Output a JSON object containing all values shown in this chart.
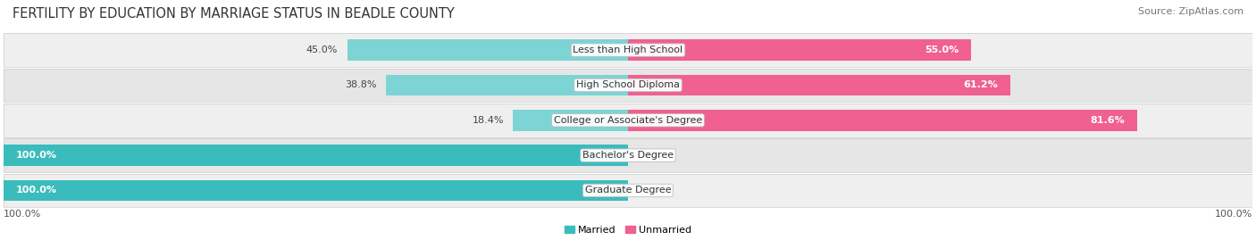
{
  "title": "FERTILITY BY EDUCATION BY MARRIAGE STATUS IN BEADLE COUNTY",
  "source": "Source: ZipAtlas.com",
  "categories": [
    "Less than High School",
    "High School Diploma",
    "College or Associate's Degree",
    "Bachelor's Degree",
    "Graduate Degree"
  ],
  "married": [
    45.0,
    38.8,
    18.4,
    100.0,
    100.0
  ],
  "unmarried": [
    55.0,
    61.2,
    81.6,
    0.0,
    0.0
  ],
  "married_color_dark": "#3BBCBC",
  "married_color_light": "#7DD4D4",
  "unmarried_color_dark": "#F06090",
  "unmarried_color_light": "#F4A8C0",
  "row_bg_colors": [
    "#EFEFEF",
    "#E6E6E6"
  ],
  "row_outline_color": "#CCCCCC",
  "title_fontsize": 10.5,
  "source_fontsize": 8,
  "label_fontsize": 8,
  "bar_height": 0.6,
  "bar_label_fontsize": 8,
  "category_fontsize": 8,
  "legend_fontsize": 8,
  "axis_label_left": "100.0%",
  "axis_label_right": "100.0%",
  "married_dark_indices": [
    3,
    4
  ],
  "unmarried_dark_indices": [
    0,
    1,
    2
  ]
}
